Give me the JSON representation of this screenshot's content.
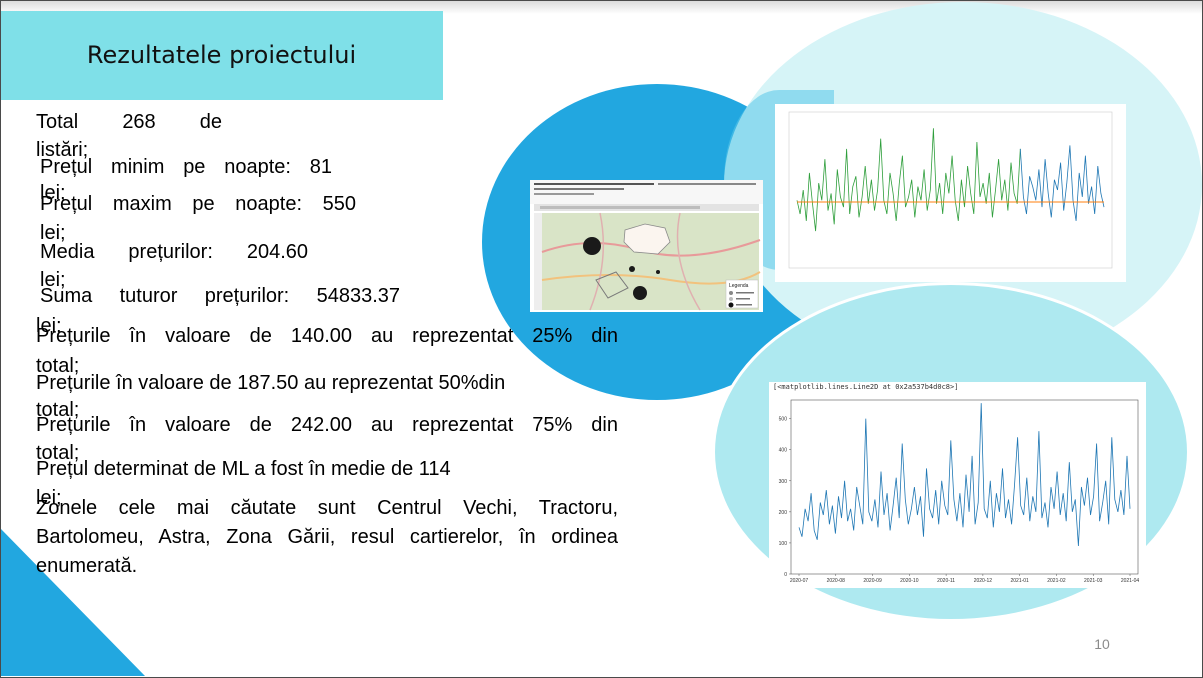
{
  "slide": {
    "title": "Rezultatele proiectului",
    "page_number": "10"
  },
  "stats": {
    "line1": [
      "Total",
      "268",
      "de"
    ],
    "line1_tail": "listări;",
    "line2": [
      "Prețul",
      "minim",
      "pe",
      "noapte:",
      "81"
    ],
    "line2_tail": "lei;",
    "line3": [
      "Prețul",
      "maxim",
      "pe",
      "noapte:",
      "550"
    ],
    "line3_tail": "lei;",
    "line4": [
      "Media",
      "prețurilor:",
      "204.60"
    ],
    "line4_tail": "lei;",
    "line5": [
      "Suma",
      "tuturor",
      "prețurilor:",
      "54833.37"
    ],
    "line5_tail": "lei;",
    "line6": "Prețurile în valoare de 140.00 au reprezentat 25% din",
    "line6_tail": "total;",
    "line7": "Prețurile în valoare de 187.50 au reprezentat 50%din",
    "line7_tail": "total;",
    "line8": "Prețurile în valoare de 242.00 au reprezentat 75% din",
    "line8_tail": "total;",
    "line9": "Prețul determinat de ML a fost în medie de 114",
    "line9_tail": "lei;",
    "line10": "Zonele cele mai căutate sunt Centrul Vechi, Tractoru, Bartolomeu, Astra, Zona Gării, resul cartierelor, în ordinea enumerată."
  },
  "map_screenshot": {
    "legend_title": "Legenda"
  },
  "chart_data": [
    {
      "type": "line",
      "title": "",
      "series": [
        {
          "values": [
            180,
            140,
            210,
            120,
            260,
            170,
            90,
            230,
            180,
            300,
            150,
            200,
            110,
            270,
            190,
            160,
            330,
            140,
            220,
            250,
            130,
            190,
            280,
            170,
            240,
            150,
            210,
            360,
            180,
            140,
            260,
            200,
            120,
            230,
            310,
            160,
            190,
            240,
            130,
            220,
            180,
            270,
            150,
            210,
            390,
            170,
            230,
            140,
            260,
            200,
            310,
            180,
            120,
            240,
            160,
            280,
            200,
            140,
            350,
            190,
            230,
            170,
            260,
            130,
            210,
            300,
            180,
            240,
            150,
            290,
            200,
            170,
            330,
            190,
            140,
            250,
            220,
            180,
            270,
            160,
            300,
            200,
            130,
            240,
            210,
            290,
            150,
            230,
            340,
            180,
            120,
            260,
            190,
            310,
            170,
            220,
            140,
            280,
            200,
            160
          ]
        }
      ],
      "reference_line": 175,
      "colors": [
        "#2e9e3b",
        "#1f77b4",
        "#ff7f0e"
      ]
    },
    {
      "type": "line",
      "header_text": "[<matplotlib.lines.Line2D at 0x2a537b4d0c8>]",
      "x_ticks": [
        "2020-07",
        "2020-08",
        "2020-09",
        "2020-10",
        "2020-11",
        "2020-12",
        "2021-01",
        "2021-02",
        "2021-03",
        "2021-04"
      ],
      "y_ticks": [
        0,
        100,
        200,
        300,
        400,
        500
      ],
      "ylim": [
        0,
        560
      ],
      "series": [
        {
          "values": [
            150,
            120,
            210,
            170,
            260,
            140,
            110,
            230,
            190,
            270,
            160,
            220,
            130,
            250,
            180,
            300,
            170,
            210,
            140,
            280,
            220,
            160,
            500,
            200,
            170,
            240,
            150,
            330,
            190,
            260,
            140,
            220,
            310,
            180,
            420,
            240,
            160,
            210,
            280,
            190,
            250,
            120,
            340,
            210,
            180,
            270,
            160,
            300,
            220,
            190,
            430,
            240,
            170,
            260,
            150,
            320,
            200,
            380,
            160,
            230,
            550,
            210,
            180,
            300,
            150,
            260,
            200,
            340,
            180,
            240,
            160,
            290,
            440,
            220,
            190,
            310,
            170,
            250,
            200,
            460,
            180,
            230,
            150,
            280,
            210,
            330,
            190,
            260,
            170,
            360,
            200,
            240,
            90,
            280,
            220,
            310,
            190,
            250,
            420,
            170,
            230,
            300,
            160,
            440,
            240,
            200,
            270,
            190,
            380,
            210
          ]
        }
      ],
      "colors": [
        "#1f77b4"
      ]
    }
  ]
}
